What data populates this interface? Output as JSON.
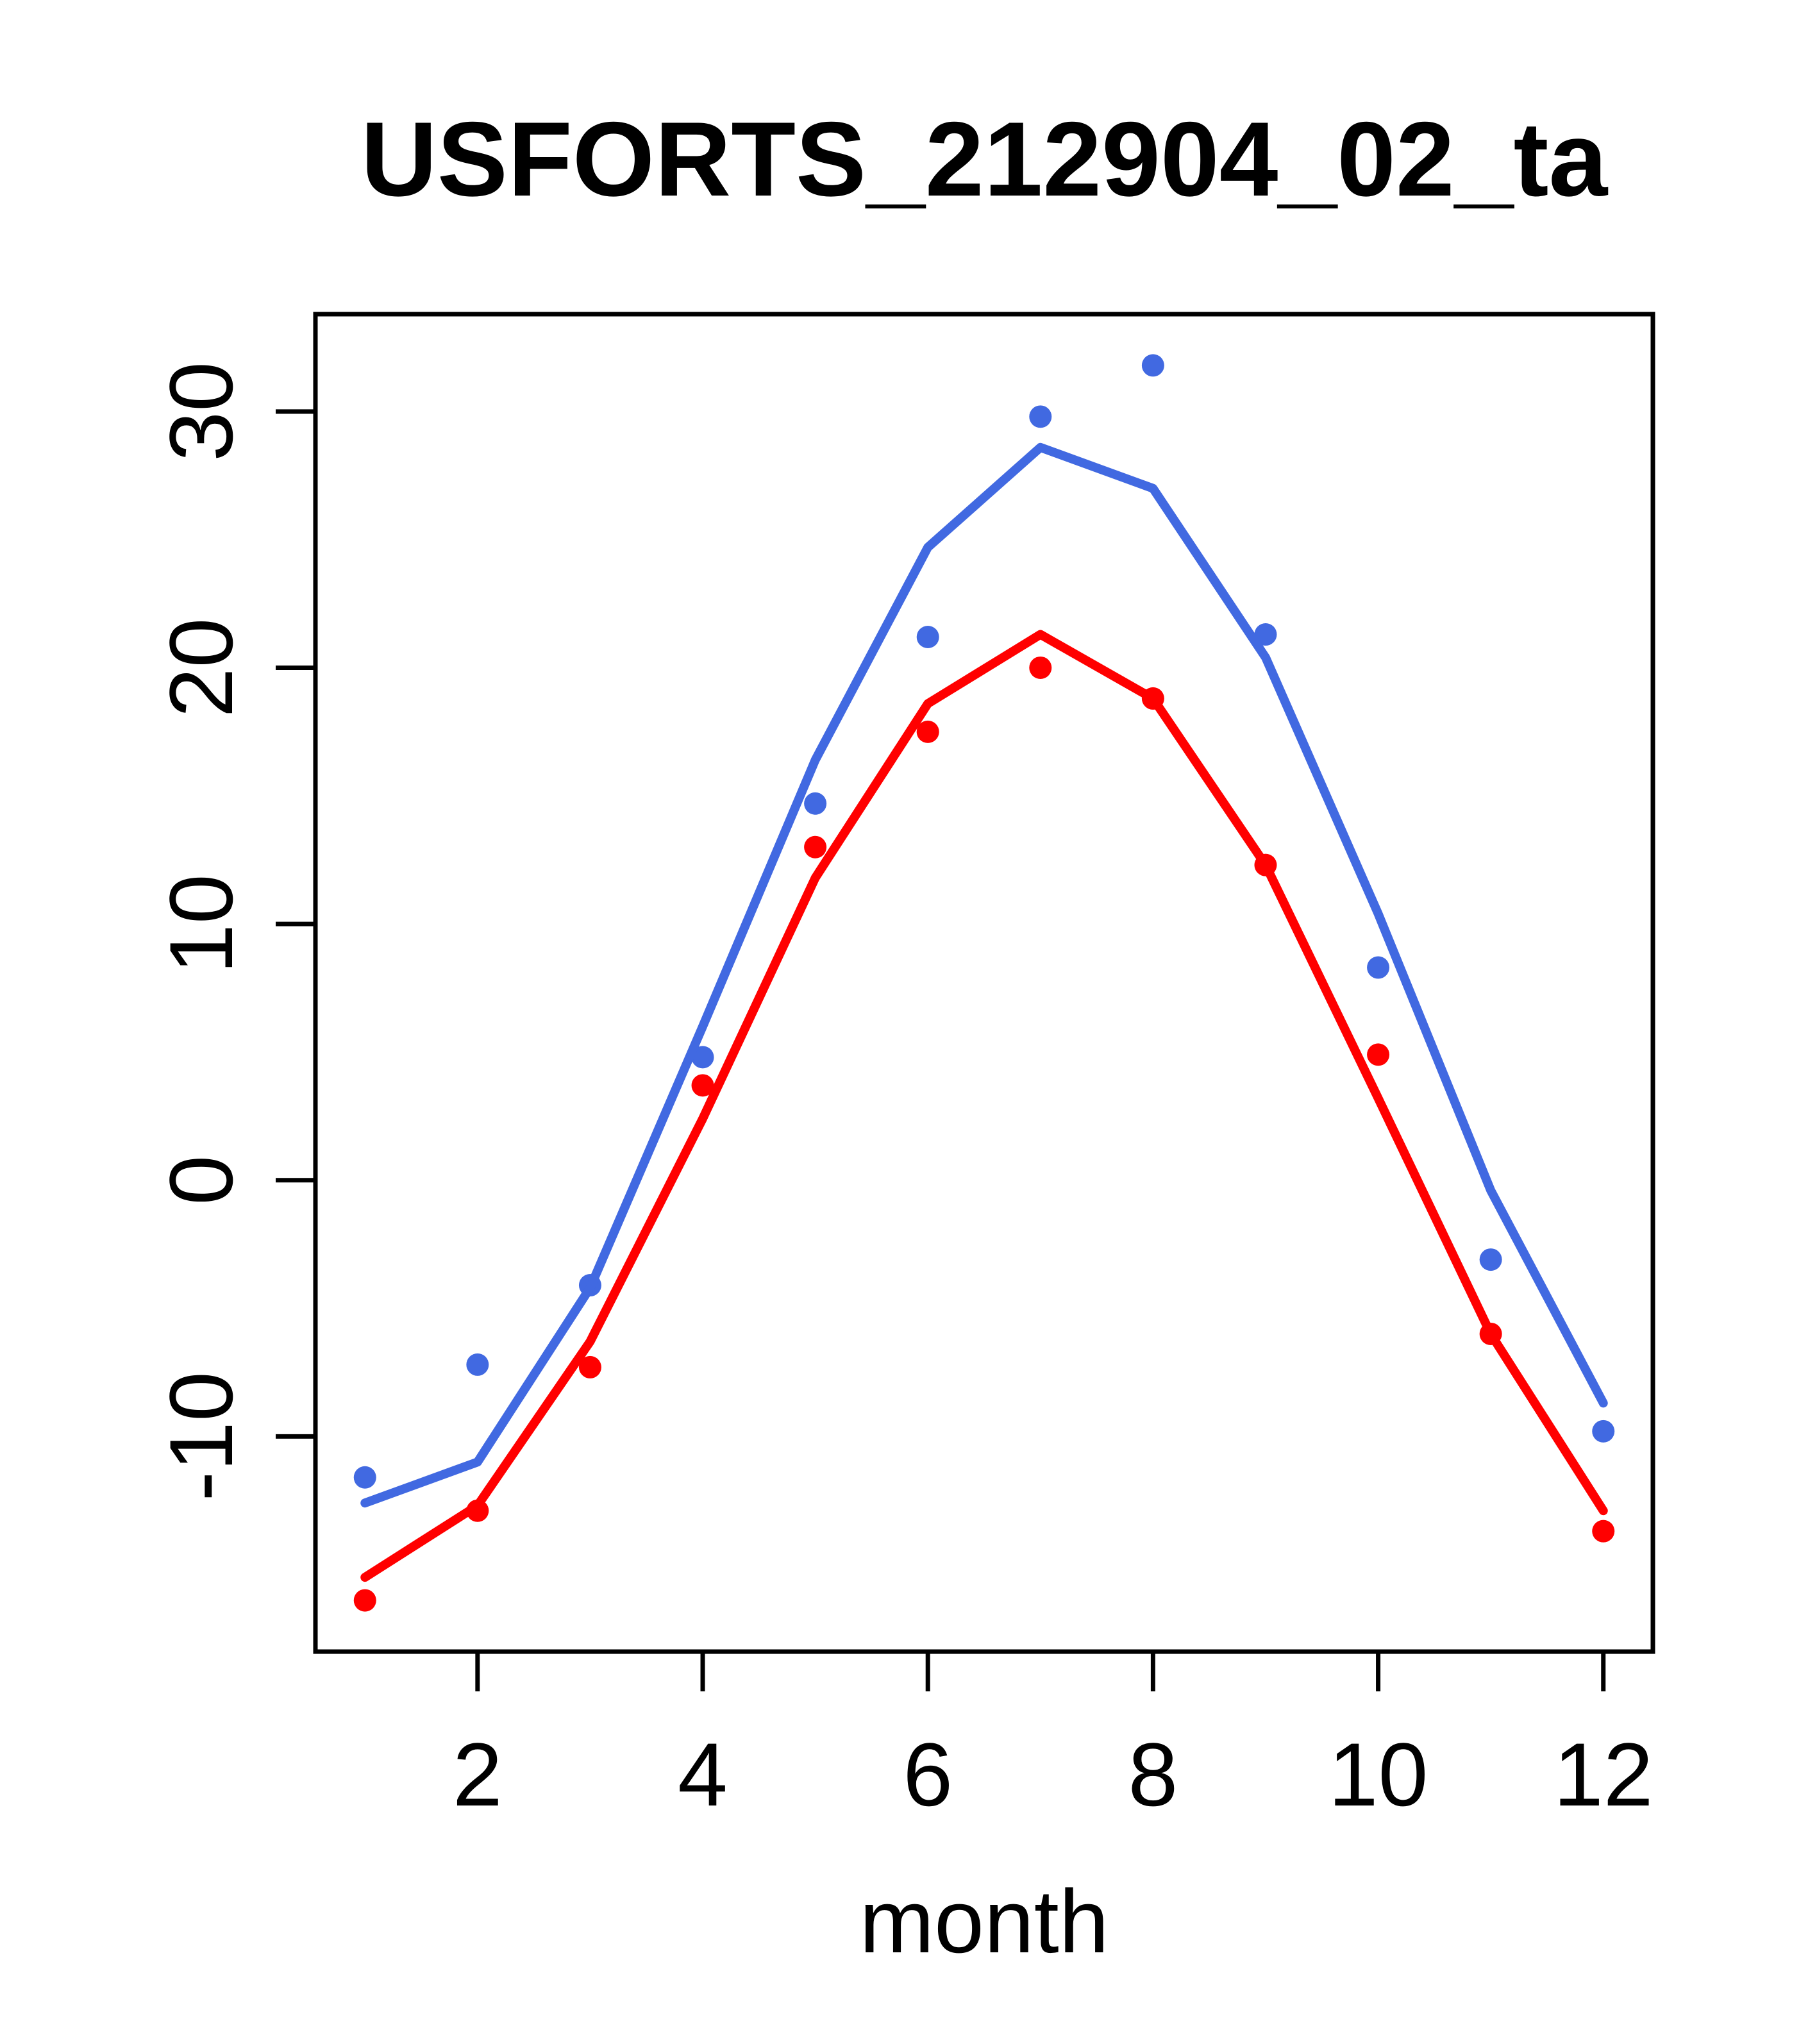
{
  "page": {
    "background": "#ffffff",
    "foreground": "#000000"
  },
  "chart_data": {
    "type": "line",
    "title": "USFORTS_212904_02_ta",
    "xlabel": "month",
    "ylabel": "",
    "grid": false,
    "legend": "none",
    "x": [
      1,
      2,
      3,
      4,
      5,
      6,
      7,
      8,
      9,
      10,
      11,
      12
    ],
    "x_ticks": [
      2,
      4,
      6,
      8,
      10,
      12
    ],
    "y_ticks": [
      -10,
      0,
      10,
      20,
      30
    ],
    "xlim": [
      0.56,
      12.44
    ],
    "ylim": [
      -18.4,
      33.8
    ],
    "axis_color": "#000000",
    "colors": {
      "blue": "#4169E1",
      "red": "#FF0000"
    },
    "series": [
      {
        "id": "blue-points",
        "name": "blue observed points",
        "type": "scatter",
        "color": "#4169E1",
        "values": [
          -11.6,
          -7.2,
          -4.1,
          4.8,
          14.7,
          21.2,
          29.8,
          31.8,
          21.3,
          8.3,
          -3.1,
          -9.8
        ]
      },
      {
        "id": "red-points",
        "name": "red observed points",
        "type": "scatter",
        "color": "#FF0000",
        "values": [
          -16.4,
          -12.9,
          -7.3,
          3.7,
          13.0,
          17.5,
          20.0,
          18.8,
          12.3,
          4.9,
          -6.0,
          -13.7
        ]
      },
      {
        "id": "blue-line",
        "name": "blue fitted line",
        "type": "line",
        "color": "#4169E1",
        "values": [
          -12.6,
          -11.0,
          -4.2,
          6.0,
          16.4,
          24.7,
          28.6,
          27.0,
          20.4,
          10.4,
          -0.4,
          -8.7
        ]
      },
      {
        "id": "red-line",
        "name": "red fitted line",
        "type": "line",
        "color": "#FF0000",
        "values": [
          -15.5,
          -12.7,
          -6.3,
          2.4,
          11.8,
          18.6,
          21.3,
          18.8,
          12.3,
          3.2,
          -6.0,
          -12.9
        ]
      }
    ]
  }
}
